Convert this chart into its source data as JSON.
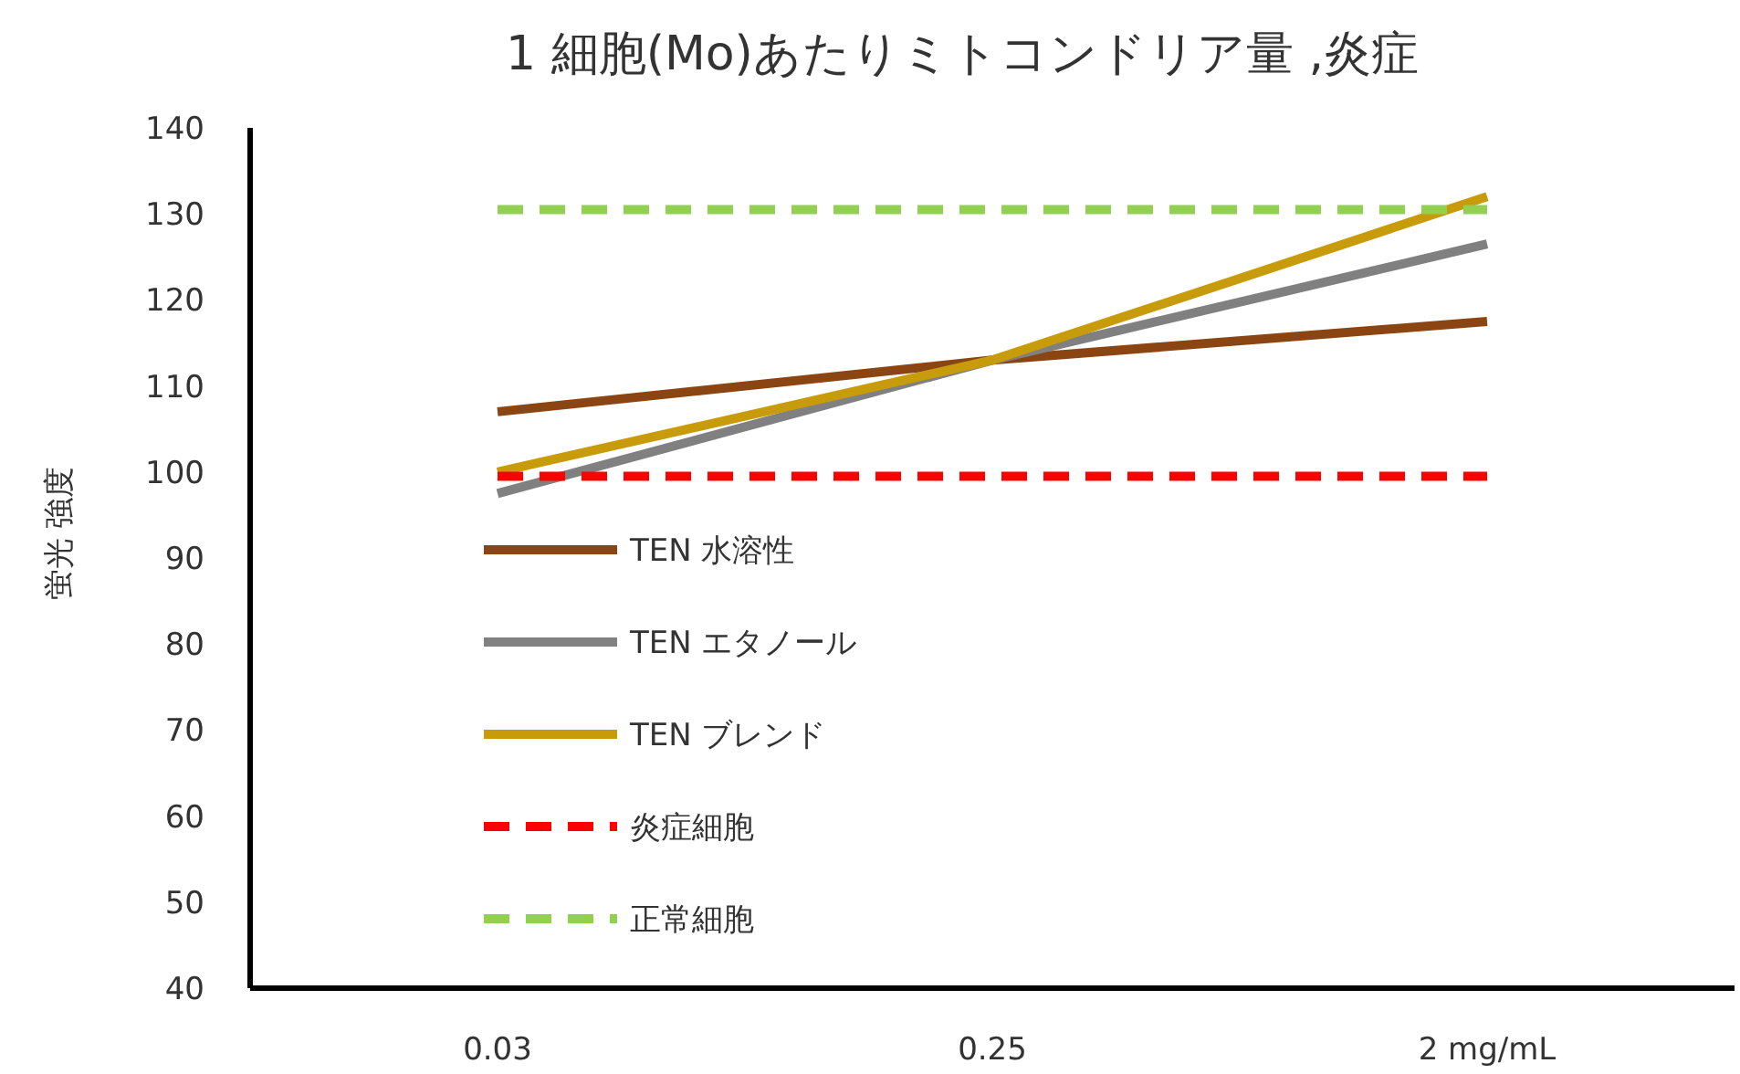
{
  "chart_data": {
    "type": "line",
    "title": "1 細胞(Mo)あたりミトコンドリア量 ,炎症",
    "ylabel": "蛍光 強度",
    "categories": [
      "0.03",
      "0.25",
      "2 mg/mL"
    ],
    "series": [
      {
        "name": "TEN 水溶性",
        "color": "#8b4513",
        "values": [
          107,
          113,
          117.5
        ]
      },
      {
        "name": "TEN エタノール",
        "color": "#808080",
        "values": [
          97.5,
          113,
          126.5
        ]
      },
      {
        "name": "TEN ブレンド",
        "color": "#c89b0a",
        "values": [
          100,
          113,
          132
        ]
      },
      {
        "name": "炎症細胞",
        "color": "#ff0000",
        "values": [
          99.5,
          99.5,
          99.5
        ],
        "line_style": "dashed"
      },
      {
        "name": "正常細胞",
        "color": "#92d050",
        "values": [
          130.5,
          130.5,
          130.5
        ],
        "line_style": "dashed"
      }
    ],
    "ylim": [
      40,
      140
    ],
    "yticks": [
      40,
      50,
      60,
      70,
      80,
      90,
      100,
      110,
      120,
      130,
      140
    ],
    "legend": "bottom left",
    "grid": false
  }
}
